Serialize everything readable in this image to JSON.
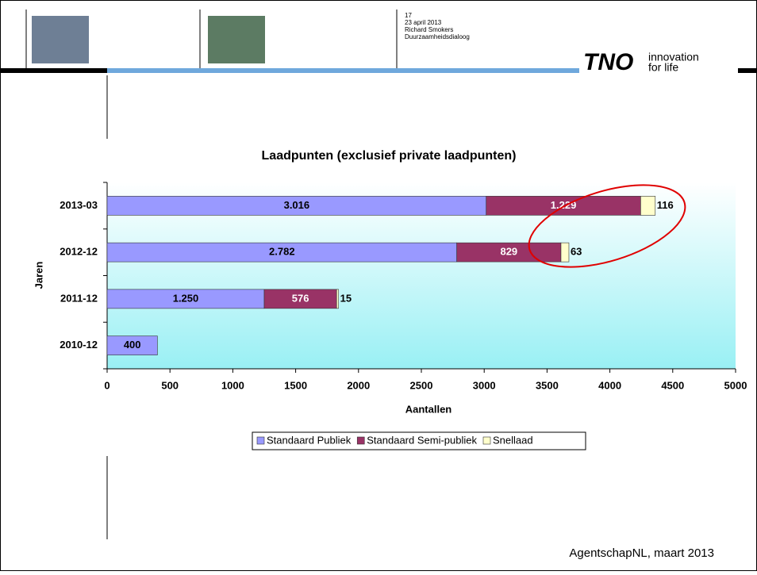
{
  "header": {
    "page": "17",
    "date": "23 april 2013",
    "author": "Richard Smokers",
    "event": "Duurzaamheidsdialoog",
    "logo": "TNO",
    "tagline1": "innovation",
    "tagline2": "for life"
  },
  "footer": "AgentschapNL, maart 2013",
  "chart_data": {
    "type": "stacked-barh",
    "title": "Laadpunten (exclusief private laadpunten)",
    "x_label": "Aantallen",
    "y_label": "Jaren",
    "categories": [
      "2013-03",
      "2012-12",
      "2011-12",
      "2010-12"
    ],
    "series": [
      {
        "name": "Standaard Publiek",
        "color": "#9999ff",
        "values": [
          3016,
          2782,
          1250,
          400
        ],
        "value_labels": [
          "3.016",
          "2.782",
          "1.250",
          "400"
        ]
      },
      {
        "name": "Standaard Semi-publiek",
        "color": "#993366",
        "values": [
          1229,
          829,
          576,
          null
        ],
        "value_labels": [
          "1.229",
          "829",
          "576",
          null
        ]
      },
      {
        "name": "Snellaad",
        "color": "#ffffcc",
        "values": [
          116,
          63,
          15,
          null
        ],
        "value_labels": [
          "116",
          "63",
          "15",
          null
        ]
      }
    ],
    "xlim": [
      0,
      5000
    ],
    "xticks": [
      0,
      500,
      1000,
      1500,
      2000,
      2500,
      3000,
      3500,
      4000,
      4500,
      5000
    ],
    "grid": false,
    "legend": "bottom"
  }
}
